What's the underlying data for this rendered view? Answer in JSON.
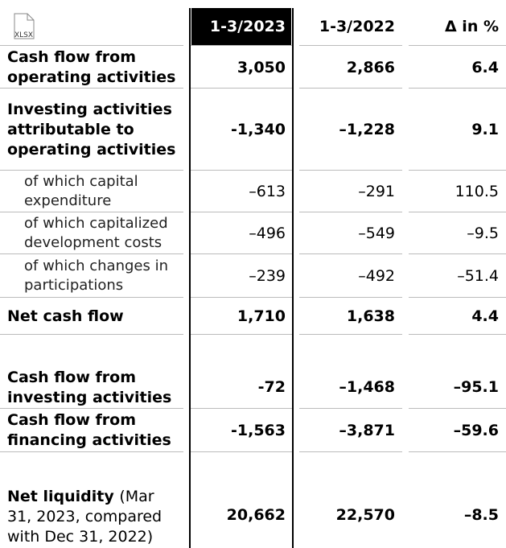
{
  "header": {
    "icon_label": "XLSX",
    "columns": [
      "1-3/2023",
      "1-3/2022",
      "Δ in %"
    ]
  },
  "rows": [
    {
      "label": "Cash flow from operating activities",
      "bold": true,
      "values": [
        "3,050",
        "2,866",
        "6.4"
      ]
    },
    {
      "label": "Investing activities attributable to operating activities",
      "bold": true,
      "values": [
        "-1,340",
        "–1,228",
        "9.1"
      ]
    },
    {
      "label": "of which capital expenditure",
      "bold": false,
      "values": [
        "–613",
        "–291",
        "110.5"
      ]
    },
    {
      "label": "of which capitalized development costs",
      "bold": false,
      "values": [
        "–496",
        "–549",
        "–9.5"
      ]
    },
    {
      "label": "of which changes in participations",
      "bold": false,
      "values": [
        "–239",
        "–492",
        "–51.4"
      ]
    },
    {
      "label": "Net cash flow",
      "bold": true,
      "values": [
        "1,710",
        "1,638",
        "4.4"
      ]
    },
    {
      "label": "Cash flow from investing activities",
      "bold": true,
      "values": [
        "-72",
        "–1,468",
        "–95.1"
      ]
    },
    {
      "label": "Cash flow from financing activities",
      "bold": true,
      "values": [
        "-1,563",
        "–3,871",
        "–59.6"
      ]
    },
    {
      "label": "Net liquidity",
      "label_note": "(Mar 31, 2023, compared with Dec 31, 2022)",
      "bold": true,
      "values": [
        "20,662",
        "22,570",
        "–8.5"
      ]
    }
  ]
}
